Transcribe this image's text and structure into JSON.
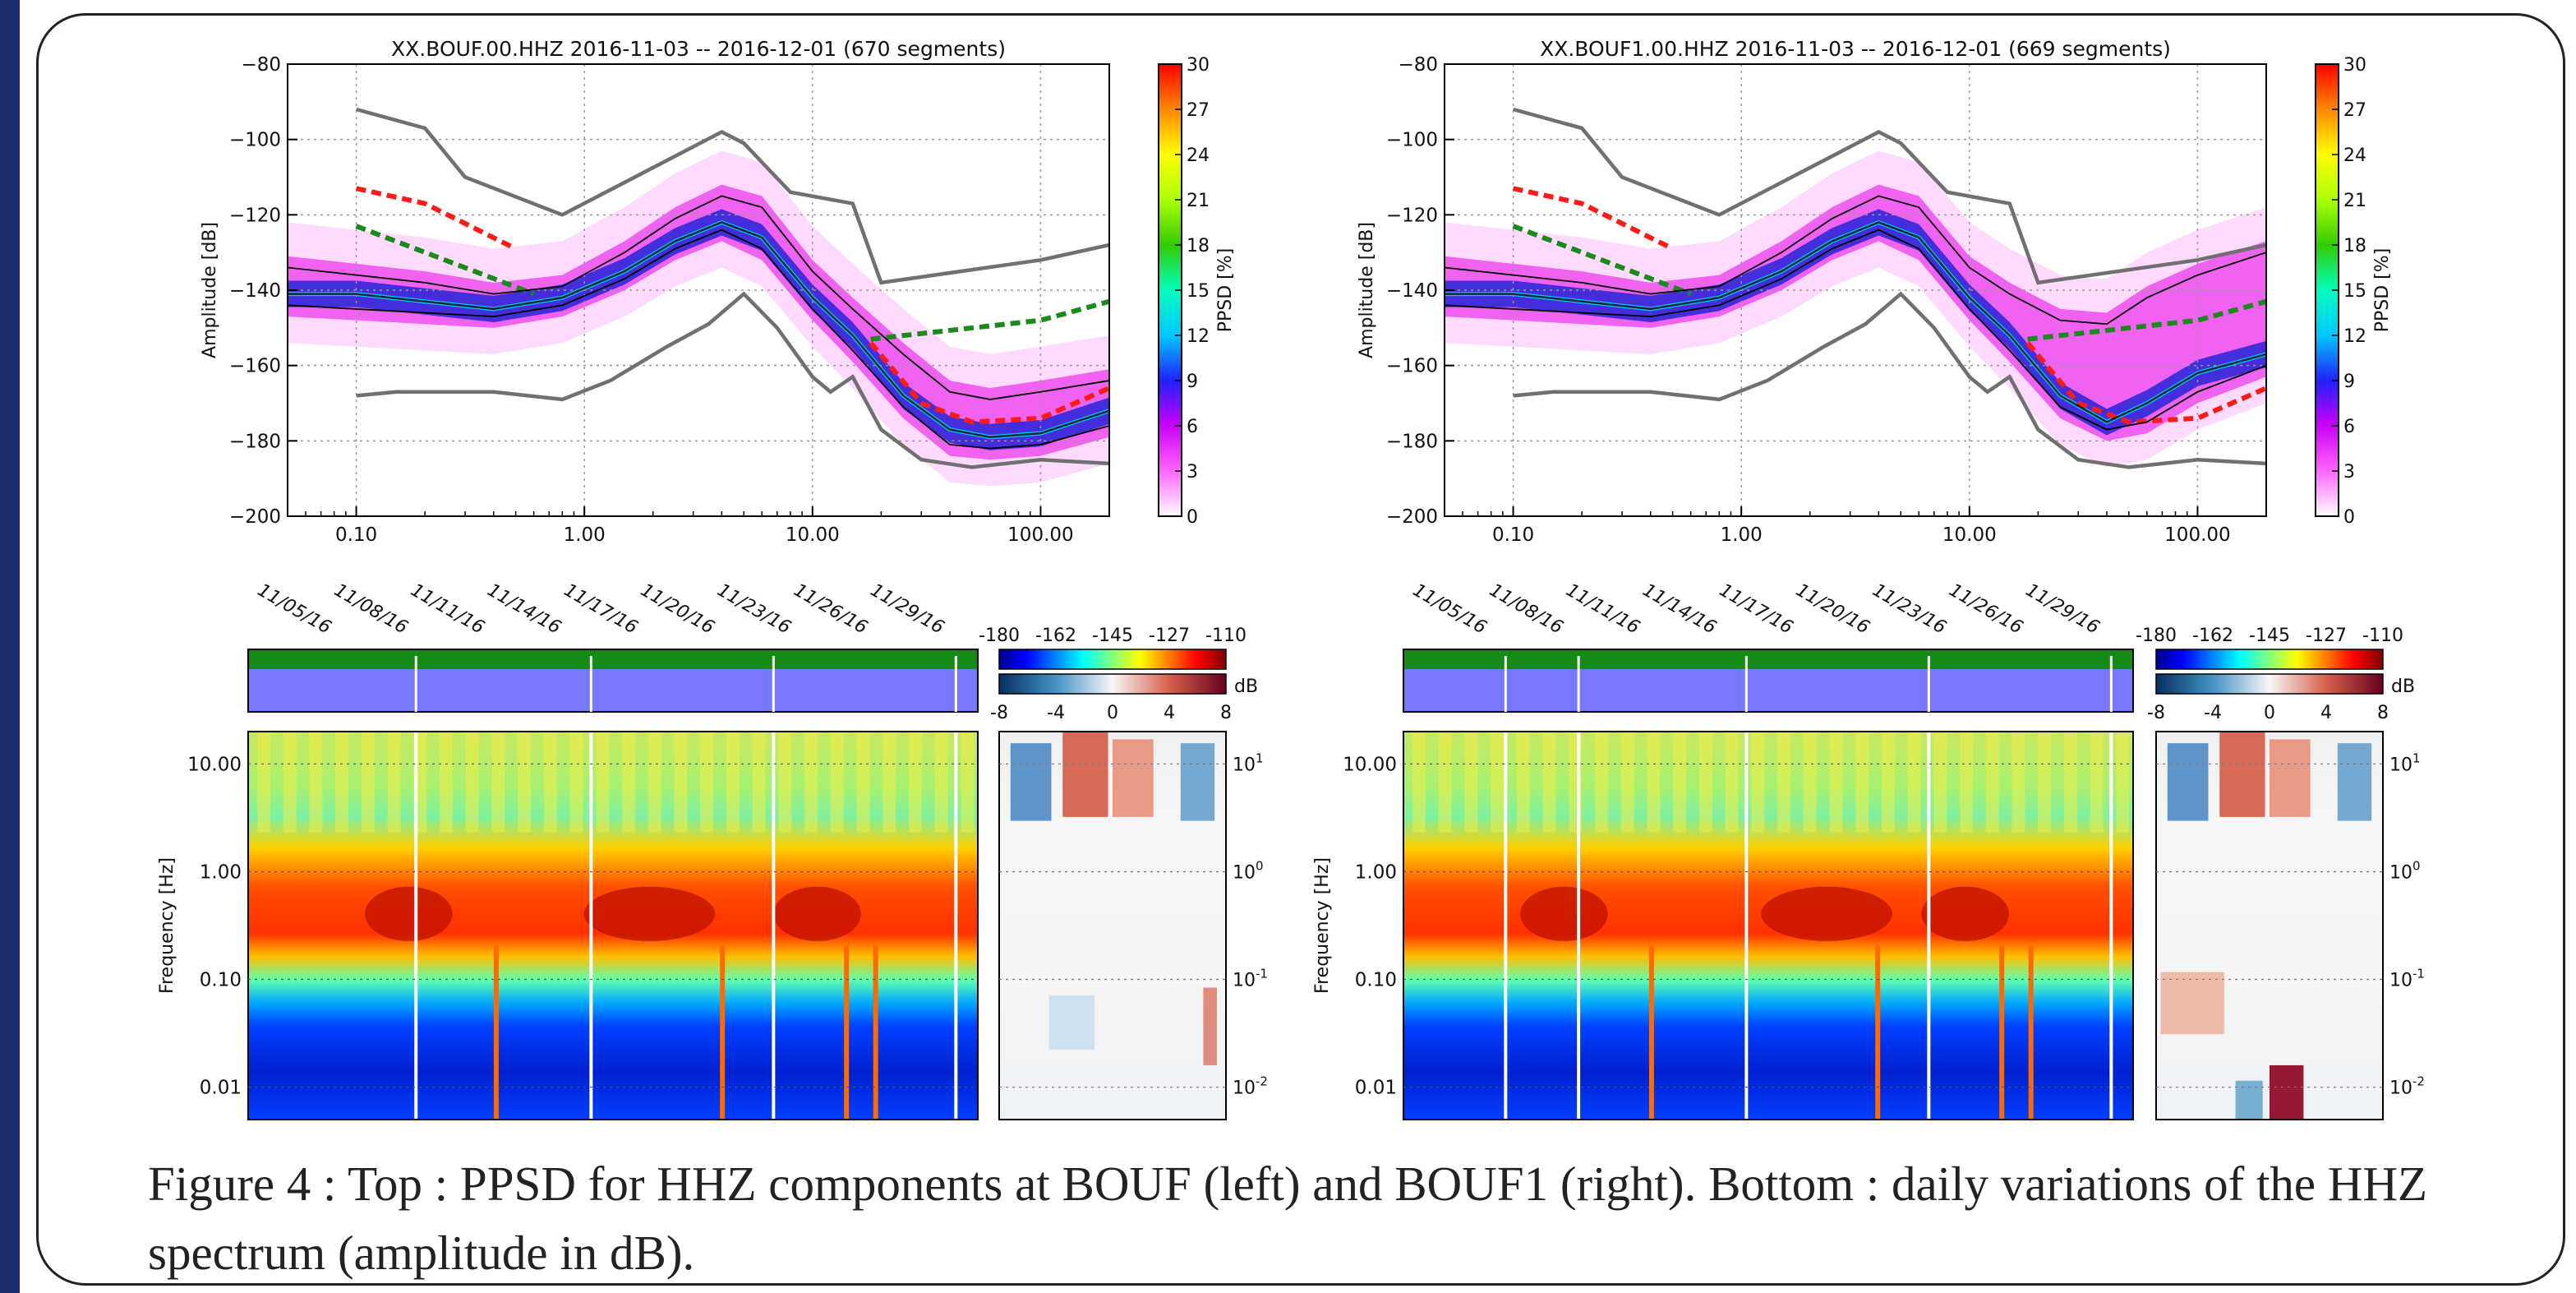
{
  "accent": {
    "frame": "#222222",
    "side_bar": "#1f2f6b"
  },
  "caption": "Figure 4 : Top : PPSD for HHZ components at BOUF (left) and BOUF1 (right). Bottom : daily variations of the HHZ spectrum (amplitude in dB).",
  "chart_data": [
    {
      "type": "heatmap",
      "title": "XX.BOUF.00.HHZ   2016-11-03 -- 2016-12-01  (670 segments)",
      "xlabel": "",
      "ylabel": "Amplitude [dB]",
      "x_scale": "log",
      "xlim": [
        0.05,
        200
      ],
      "ylim": [
        -200,
        -80
      ],
      "x_ticks": [
        0.1,
        1,
        10,
        100
      ],
      "x_tick_labels": [
        "0.10",
        "1.00",
        "10.00",
        "100.00"
      ],
      "y_ticks": [
        -200,
        -180,
        -160,
        -140,
        -120,
        -100,
        -80
      ],
      "grid": true,
      "colorbar": {
        "label": "PPSD [%]",
        "ticks": [
          0,
          3,
          6,
          9,
          12,
          15,
          18,
          21,
          24,
          27,
          30
        ]
      },
      "series": [
        {
          "style": "gray-solid",
          "x": [
            0.1,
            0.2,
            0.3,
            0.8,
            4,
            5,
            8,
            15,
            20,
            100,
            200
          ],
          "y": [
            -92,
            -97,
            -110,
            -120,
            -98,
            -101,
            -114,
            -117,
            -138,
            -132,
            -128
          ]
        },
        {
          "style": "gray-solid",
          "x": [
            0.1,
            0.15,
            0.4,
            0.8,
            1.3,
            2.3,
            3.5,
            5,
            7,
            10,
            12,
            15,
            20,
            30,
            50,
            100,
            200
          ],
          "y": [
            -168,
            -167,
            -167,
            -169,
            -164,
            -155,
            -149,
            -141,
            -150,
            -163,
            -167,
            -163,
            -177,
            -185,
            -187,
            -185,
            -186
          ]
        },
        {
          "style": "red-dashed",
          "x": [
            0.1,
            0.2,
            0.5
          ],
          "y": [
            -113,
            -117,
            -129
          ]
        },
        {
          "style": "red-dashed",
          "x": [
            18,
            30,
            50,
            100,
            200
          ],
          "y": [
            -154,
            -170,
            -175,
            -174,
            -166
          ]
        },
        {
          "style": "green-dashed",
          "x": [
            0.1,
            0.6
          ],
          "y": [
            -123,
            -141
          ]
        },
        {
          "style": "green-dashed",
          "x": [
            18,
            100,
            200
          ],
          "y": [
            -153,
            -148,
            -143
          ]
        },
        {
          "style": "mode",
          "x": [
            0.05,
            0.1,
            0.2,
            0.4,
            0.8,
            1.5,
            2.5,
            4,
            6,
            10,
            15,
            25,
            40,
            60,
            100,
            200
          ],
          "y": [
            -141,
            -141,
            -143,
            -145,
            -142,
            -135,
            -127,
            -122,
            -126,
            -142,
            -152,
            -168,
            -177,
            -179,
            -178,
            -172
          ]
        },
        {
          "style": "percentile",
          "x": [
            0.05,
            0.1,
            0.2,
            0.4,
            0.8,
            1.5,
            2.5,
            4,
            6,
            10,
            15,
            25,
            40,
            60,
            100,
            200
          ],
          "y": [
            -134,
            -136,
            -138,
            -141,
            -139,
            -130,
            -121,
            -115,
            -118,
            -135,
            -145,
            -157,
            -167,
            -169,
            -167,
            -164
          ]
        },
        {
          "style": "percentile",
          "x": [
            0.05,
            0.1,
            0.2,
            0.4,
            0.8,
            1.5,
            2.5,
            4,
            6,
            10,
            15,
            25,
            40,
            60,
            100,
            200
          ],
          "y": [
            -144,
            -145,
            -146,
            -147,
            -144,
            -137,
            -129,
            -124,
            -129,
            -145,
            -156,
            -171,
            -181,
            -182,
            -181,
            -176
          ]
        }
      ]
    },
    {
      "type": "heatmap",
      "title": "XX.BOUF1.00.HHZ   2016-11-03 -- 2016-12-01  (669 segments)",
      "xlabel": "",
      "ylabel": "Amplitude [dB]",
      "x_scale": "log",
      "xlim": [
        0.05,
        200
      ],
      "ylim": [
        -200,
        -80
      ],
      "x_ticks": [
        0.1,
        1,
        10,
        100
      ],
      "x_tick_labels": [
        "0.10",
        "1.00",
        "10.00",
        "100.00"
      ],
      "y_ticks": [
        -200,
        -180,
        -160,
        -140,
        -120,
        -100,
        -80
      ],
      "grid": true,
      "colorbar": {
        "label": "PPSD [%]",
        "ticks": [
          0,
          3,
          6,
          9,
          12,
          15,
          18,
          21,
          24,
          27,
          30
        ]
      },
      "series": [
        {
          "style": "gray-solid",
          "x": [
            0.1,
            0.2,
            0.3,
            0.8,
            4,
            5,
            8,
            15,
            20,
            100,
            200
          ],
          "y": [
            -92,
            -97,
            -110,
            -120,
            -98,
            -101,
            -114,
            -117,
            -138,
            -132,
            -128
          ]
        },
        {
          "style": "gray-solid",
          "x": [
            0.1,
            0.15,
            0.4,
            0.8,
            1.3,
            2.3,
            3.5,
            5,
            7,
            10,
            12,
            15,
            20,
            30,
            50,
            100,
            200
          ],
          "y": [
            -168,
            -167,
            -167,
            -169,
            -164,
            -155,
            -149,
            -141,
            -150,
            -163,
            -167,
            -163,
            -177,
            -185,
            -187,
            -185,
            -186
          ]
        },
        {
          "style": "red-dashed",
          "x": [
            0.1,
            0.2,
            0.5
          ],
          "y": [
            -113,
            -117,
            -129
          ]
        },
        {
          "style": "red-dashed",
          "x": [
            18,
            30,
            50,
            100,
            200
          ],
          "y": [
            -154,
            -170,
            -175,
            -174,
            -166
          ]
        },
        {
          "style": "green-dashed",
          "x": [
            0.1,
            0.6
          ],
          "y": [
            -123,
            -141
          ]
        },
        {
          "style": "green-dashed",
          "x": [
            18,
            100,
            200
          ],
          "y": [
            -153,
            -148,
            -143
          ]
        },
        {
          "style": "mode",
          "x": [
            0.05,
            0.1,
            0.2,
            0.4,
            0.8,
            1.5,
            2.5,
            4,
            6,
            10,
            15,
            25,
            40,
            60,
            100,
            200
          ],
          "y": [
            -141,
            -141,
            -143,
            -145,
            -142,
            -135,
            -127,
            -122,
            -126,
            -142,
            -152,
            -168,
            -175,
            -170,
            -162,
            -157
          ]
        },
        {
          "style": "percentile",
          "x": [
            0.05,
            0.1,
            0.2,
            0.4,
            0.8,
            1.5,
            2.5,
            4,
            6,
            10,
            15,
            25,
            40,
            60,
            100,
            200
          ],
          "y": [
            -134,
            -136,
            -138,
            -141,
            -139,
            -130,
            -121,
            -115,
            -118,
            -134,
            -141,
            -148,
            -149,
            -142,
            -136,
            -130
          ]
        },
        {
          "style": "percentile",
          "x": [
            0.05,
            0.1,
            0.2,
            0.4,
            0.8,
            1.5,
            2.5,
            4,
            6,
            10,
            15,
            25,
            40,
            60,
            100,
            200
          ],
          "y": [
            -144,
            -145,
            -146,
            -147,
            -144,
            -137,
            -129,
            -124,
            -129,
            -145,
            -156,
            -171,
            -177,
            -175,
            -167,
            -160
          ]
        }
      ]
    },
    {
      "type": "heatmap",
      "title": "",
      "ylabel": "Frequency [Hz]",
      "y_scale": "log",
      "ylim": [
        0.005,
        20
      ],
      "y_ticks": [
        0.01,
        0.1,
        1,
        10
      ],
      "y_tick_labels": [
        "0.01",
        "0.10",
        "1.00",
        "10.00"
      ],
      "x_tick_labels": [
        "11/05/16",
        "11/08/16",
        "11/11/16",
        "11/14/16",
        "11/17/16",
        "11/20/16",
        "11/23/16",
        "11/26/16",
        "11/29/16"
      ],
      "colorbar": {
        "label": "",
        "ticks": [
          -180,
          -162,
          -145,
          -127,
          -110
        ]
      },
      "diff_colorbar": {
        "label": "dB",
        "ticks": [
          -8,
          -4,
          0,
          4,
          8
        ]
      },
      "side_y_tick_labels": [
        "10",
        "10",
        "10",
        "10"
      ],
      "side_y_tick_exponents": [
        "1",
        "0",
        "-1",
        "-2"
      ]
    },
    {
      "type": "heatmap",
      "title": "",
      "ylabel": "Frequency [Hz]",
      "y_scale": "log",
      "ylim": [
        0.005,
        20
      ],
      "y_ticks": [
        0.01,
        0.1,
        1,
        10
      ],
      "y_tick_labels": [
        "0.01",
        "0.10",
        "1.00",
        "10.00"
      ],
      "x_tick_labels": [
        "11/05/16",
        "11/08/16",
        "11/11/16",
        "11/14/16",
        "11/17/16",
        "11/20/16",
        "11/23/16",
        "11/26/16",
        "11/29/16"
      ],
      "colorbar": {
        "label": "",
        "ticks": [
          -180,
          -162,
          -145,
          -127,
          -110
        ]
      },
      "diff_colorbar": {
        "label": "dB",
        "ticks": [
          -8,
          -4,
          0,
          4,
          8
        ]
      },
      "side_y_tick_labels": [
        "10",
        "10",
        "10",
        "10"
      ],
      "side_y_tick_exponents": [
        "1",
        "0",
        "-1",
        "-2"
      ]
    }
  ]
}
